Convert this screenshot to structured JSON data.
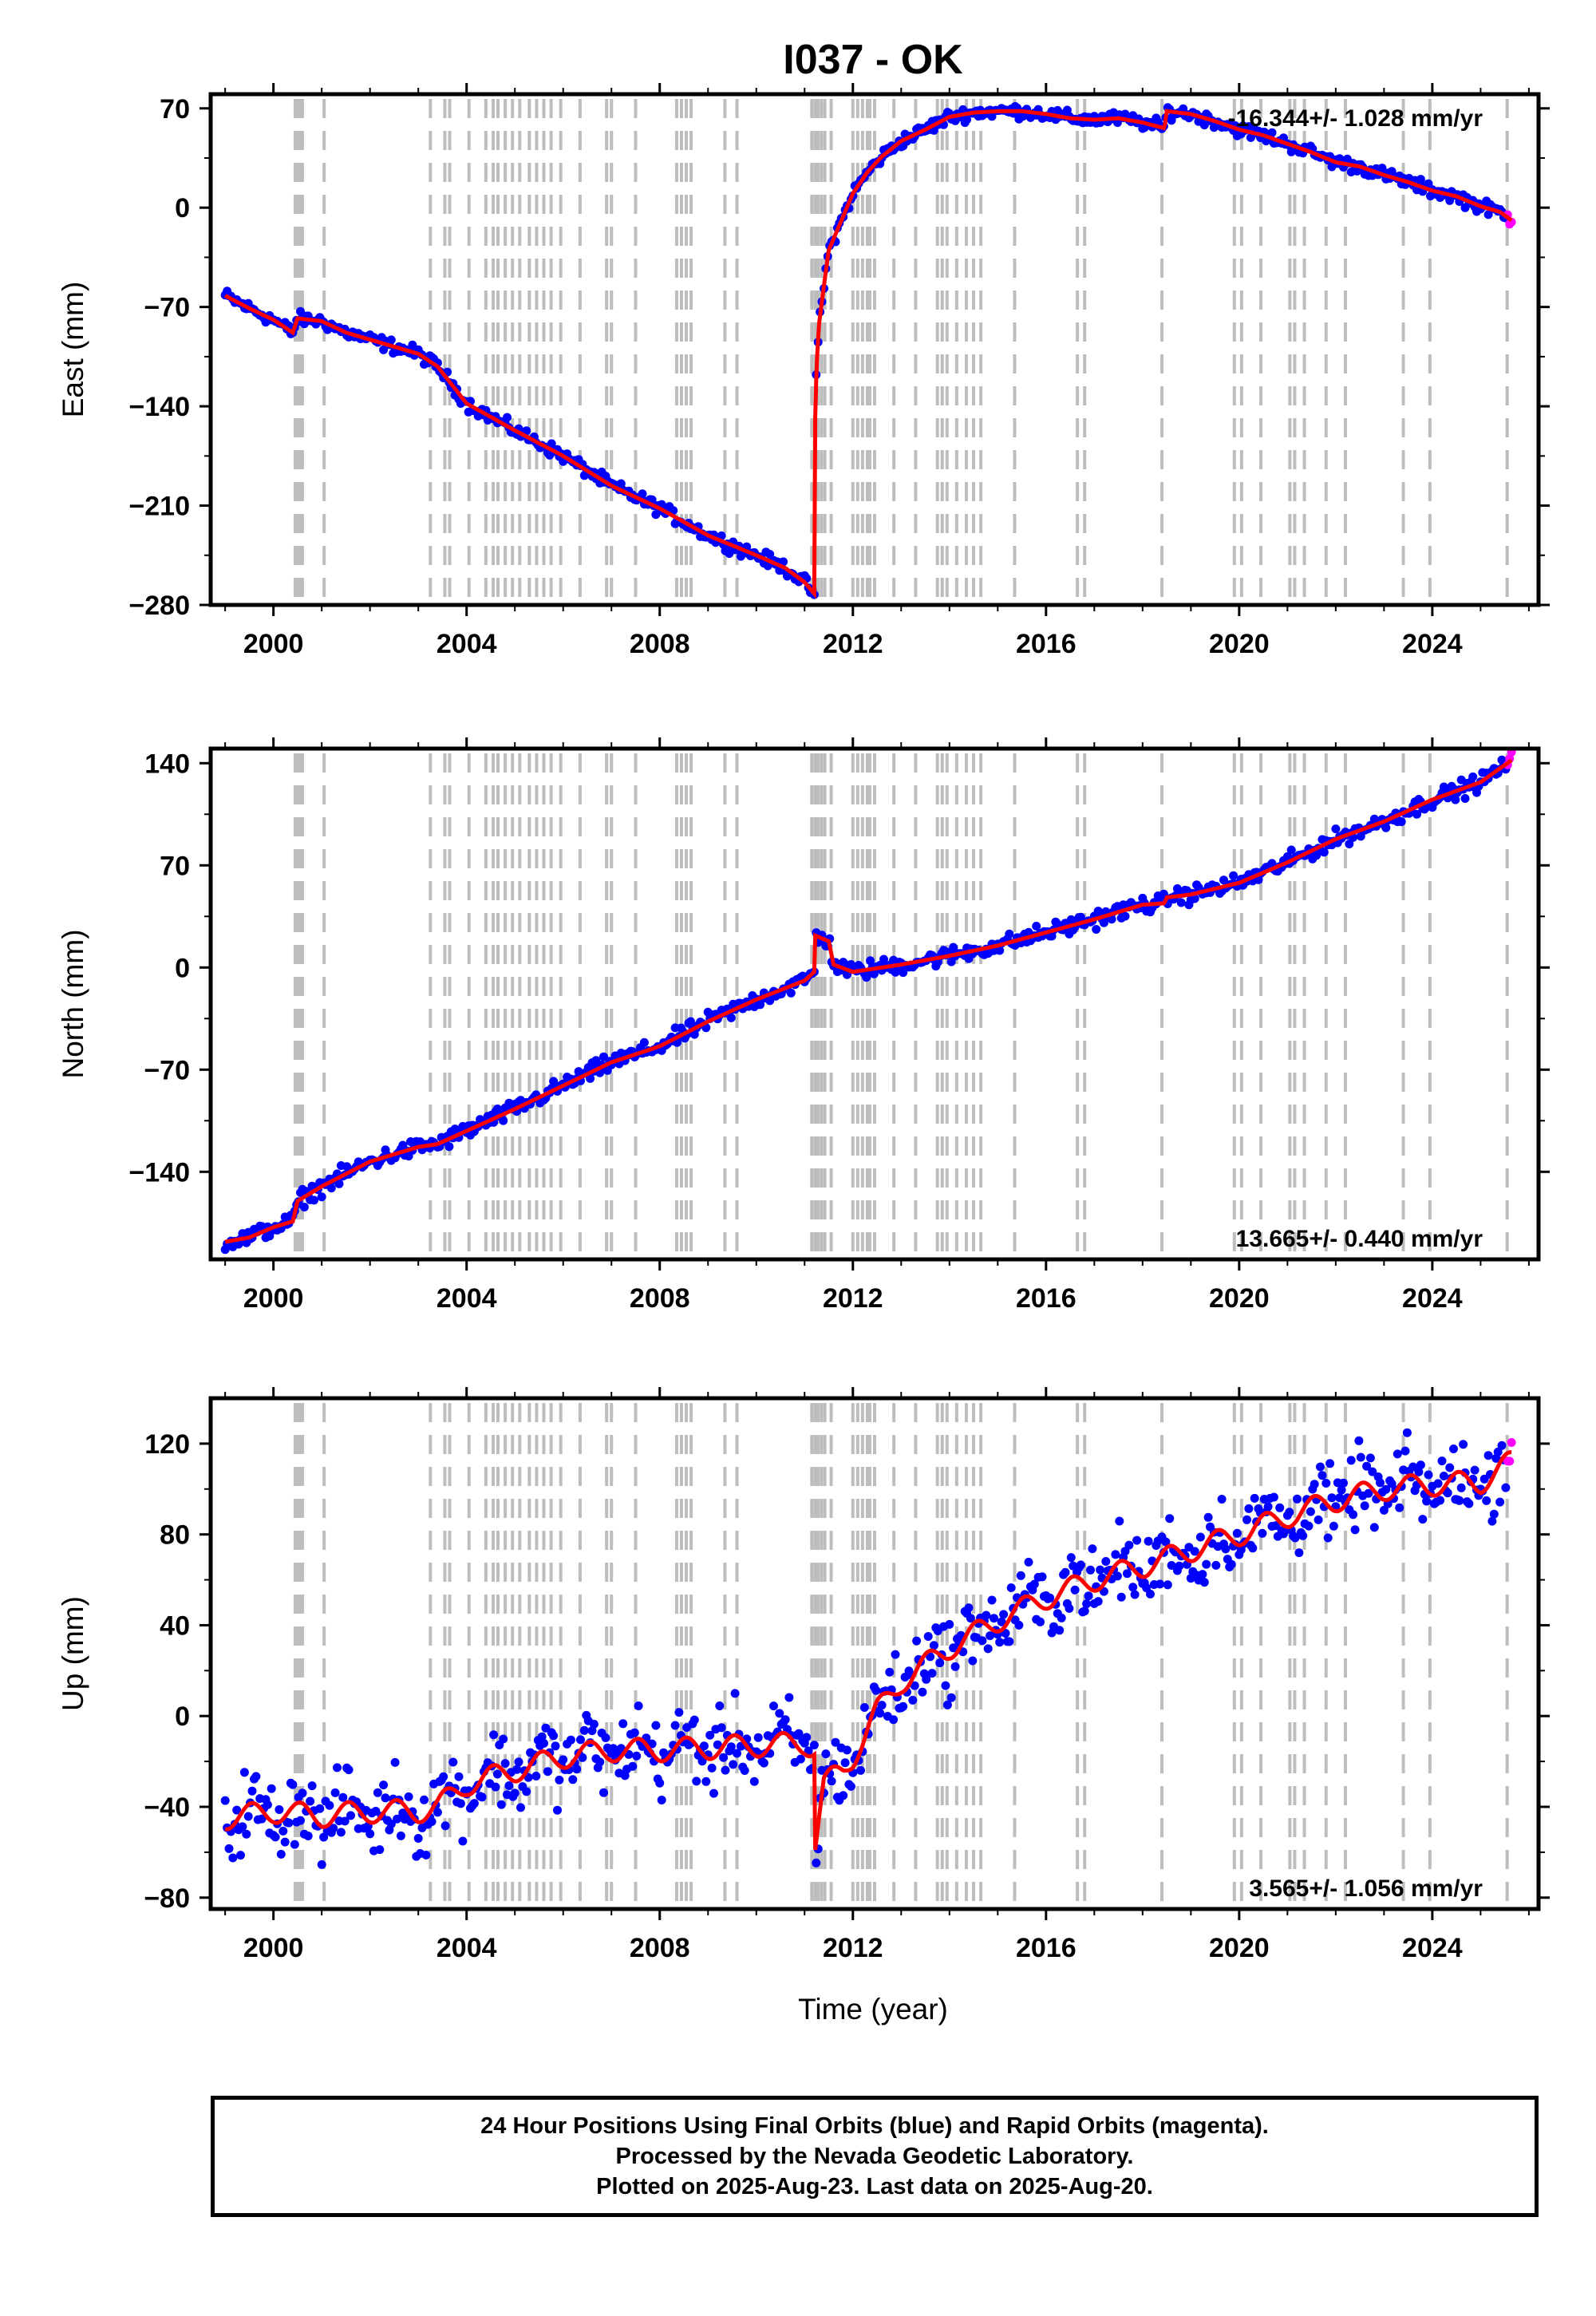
{
  "title": "I037 - OK",
  "xlabel": "Time (year)",
  "colors": {
    "final": "#0000ff",
    "rapid": "#ff00ff",
    "model": "#ff0000",
    "event_lines": "#bdbdbd",
    "frame": "#000000"
  },
  "chart_data": [
    {
      "type": "scatter",
      "ylabel": "East (mm)",
      "xlim": [
        1998.7,
        2026.2
      ],
      "ylim": [
        -280,
        80
      ],
      "yticks": [
        70,
        0,
        -70,
        -140,
        -210,
        -280
      ],
      "ytick_labels": [
        "70",
        "0",
        "−70",
        "−140",
        "−210",
        "−280"
      ],
      "xticks": [
        2000,
        2004,
        2008,
        2012,
        2016,
        2020,
        2024
      ],
      "xtick_labels": [
        "2000",
        "2004",
        "2008",
        "2012",
        "2016",
        "2020",
        "2024"
      ],
      "rate_label": "-16.344+/- 1.028 mm/yr",
      "rate_position": "top-right",
      "series": [
        {
          "x": [
            1999.0,
            1999.5,
            2000.0,
            2000.4,
            2000.5,
            2001.0,
            2001.5,
            2002.0,
            2003.0,
            2003.4,
            2004.0,
            2005.0,
            2006.0,
            2007.0,
            2008.0,
            2009.0,
            2010.0,
            2010.6,
            2011.0,
            2011.2,
            2011.21,
            2011.25,
            2011.3,
            2011.4,
            2011.5,
            2011.7,
            2012.0,
            2012.3,
            2012.6,
            2013.0,
            2013.5,
            2014.0,
            2014.5,
            2015.0,
            2015.5,
            2016.0,
            2016.5,
            2017.0,
            2017.5,
            2018.0,
            2018.45,
            2018.5,
            2019.0,
            2019.5,
            2020.0,
            2020.5,
            2021.0,
            2021.5,
            2022.0,
            2022.5,
            2023.0,
            2023.5,
            2024.0,
            2024.5,
            2025.0,
            2025.4,
            2025.64
          ],
          "y": [
            -62,
            -71,
            -79,
            -88,
            -78,
            -80,
            -88,
            -93,
            -103,
            -112,
            -138,
            -157,
            -175,
            -196,
            -212,
            -231,
            -245,
            -254,
            -264,
            -272,
            -160,
            -110,
            -82,
            -55,
            -30,
            -14,
            10,
            25,
            36,
            47,
            55,
            64,
            67,
            68,
            68,
            66,
            63,
            62,
            63,
            60,
            56,
            68,
            66,
            61,
            55,
            51,
            45,
            39,
            32,
            29,
            23,
            18,
            12,
            8,
            1,
            -3,
            -9
          ]
        }
      ]
    },
    {
      "type": "scatter",
      "ylabel": "North (mm)",
      "xlim": [
        1998.7,
        2026.2
      ],
      "ylim": [
        -200,
        150
      ],
      "yticks": [
        140,
        70,
        0,
        -70,
        -140
      ],
      "ytick_labels": [
        "140",
        "70",
        "0",
        "−70",
        "−140"
      ],
      "xticks": [
        2000,
        2004,
        2008,
        2012,
        2016,
        2020,
        2024
      ],
      "xtick_labels": [
        "2000",
        "2004",
        "2008",
        "2012",
        "2016",
        "2020",
        "2024"
      ],
      "rate_label": "13.665+/- 0.440 mm/yr",
      "rate_position": "bottom-right",
      "series": [
        {
          "x": [
            1999.0,
            1999.5,
            2000.0,
            2000.4,
            2000.5,
            2001.0,
            2002.0,
            2003.0,
            2003.4,
            2004.0,
            2005.0,
            2006.0,
            2007.0,
            2008.0,
            2009.0,
            2010.0,
            2011.0,
            2011.2,
            2011.21,
            2011.5,
            2011.6,
            2012.0,
            2013.0,
            2014.0,
            2015.0,
            2016.0,
            2017.0,
            2018.0,
            2018.45,
            2018.5,
            2019.0,
            2020.0,
            2021.0,
            2022.0,
            2023.0,
            2024.0,
            2025.0,
            2025.64
          ],
          "y": [
            -188,
            -185,
            -178,
            -174,
            -160,
            -150,
            -133,
            -123,
            -121,
            -112,
            -97,
            -81,
            -65,
            -54,
            -37,
            -22,
            -9,
            -3,
            22,
            18,
            2,
            -3,
            2,
            8,
            15,
            24,
            33,
            43,
            44,
            48,
            50,
            58,
            72,
            88,
            100,
            115,
            127,
            142
          ]
        }
      ]
    },
    {
      "type": "scatter",
      "ylabel": "Up (mm)",
      "xlim": [
        1998.7,
        2026.2
      ],
      "ylim": [
        -85,
        140
      ],
      "yticks": [
        120,
        80,
        40,
        0,
        -40,
        -80
      ],
      "ytick_labels": [
        "120",
        "80",
        "40",
        "0",
        "−40",
        "−80"
      ],
      "xticks": [
        2000,
        2004,
        2008,
        2012,
        2016,
        2020,
        2024
      ],
      "xtick_labels": [
        "2000",
        "2004",
        "2008",
        "2012",
        "2016",
        "2020",
        "2024"
      ],
      "rate_label": "3.565+/- 1.056 mm/yr",
      "rate_position": "bottom-right",
      "series": [
        {
          "x": [
            1999.0,
            2000.0,
            2001.0,
            2002.0,
            2003.0,
            2003.4,
            2004.0,
            2005.0,
            2006.0,
            2007.0,
            2008.0,
            2009.0,
            2010.0,
            2011.0,
            2011.2,
            2011.21,
            2011.4,
            2011.8,
            2012.0,
            2012.5,
            2013.0,
            2014.0,
            2015.0,
            2016.0,
            2017.0,
            2018.0,
            2019.0,
            2020.0,
            2021.0,
            2022.0,
            2023.0,
            2024.0,
            2025.0,
            2025.64
          ],
          "y": [
            -45,
            -42,
            -44,
            -42,
            -42,
            -40,
            -30,
            -24,
            -18,
            -15,
            -15,
            -14,
            -13,
            -12,
            -14,
            -58,
            -30,
            -24,
            -18,
            2,
            15,
            30,
            42,
            52,
            60,
            66,
            73,
            80,
            88,
            95,
            100,
            102,
            103,
            112
          ]
        }
      ]
    }
  ],
  "event_lines": [
    2000.45,
    2000.5,
    2000.55,
    2000.6,
    2001.05,
    2003.25,
    2003.55,
    2003.65,
    2004.05,
    2004.4,
    2004.55,
    2004.65,
    2004.8,
    2004.95,
    2005.1,
    2005.3,
    2005.45,
    2005.6,
    2005.75,
    2005.95,
    2006.35,
    2006.9,
    2007.0,
    2007.5,
    2008.35,
    2008.45,
    2008.55,
    2008.65,
    2009.35,
    2009.6,
    2011.15,
    2011.22,
    2011.28,
    2011.35,
    2011.42,
    2011.55,
    2012.0,
    2012.1,
    2012.2,
    2012.3,
    2012.35,
    2012.45,
    2012.85,
    2013.3,
    2013.75,
    2013.85,
    2013.95,
    2014.15,
    2014.35,
    2014.5,
    2014.65,
    2015.35,
    2016.65,
    2016.8,
    2018.4,
    2019.9,
    2020.05,
    2020.45,
    2021.05,
    2021.15,
    2021.35,
    2021.8,
    2022.2,
    2023.4,
    2023.95,
    2025.55
  ],
  "footer": {
    "line1": "24 Hour Positions Using Final Orbits (blue) and Rapid Orbits (magenta).",
    "line2": "Processed by the Nevada Geodetic Laboratory.",
    "line3": "Plotted on 2025-Aug-23. Last data on 2025-Aug-20."
  }
}
